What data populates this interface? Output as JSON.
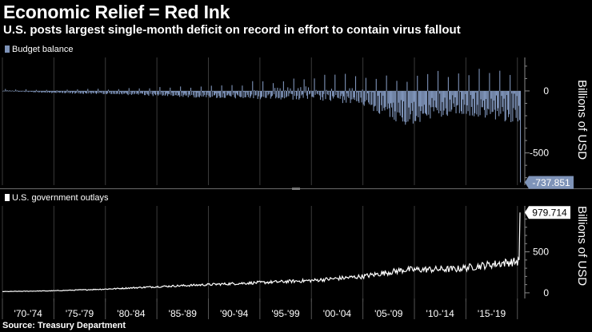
{
  "header": {
    "title": "Economic Relief = Red Ink",
    "subtitle": "U.S. posts largest single-month deficit on record in effort to contain virus fallout"
  },
  "footer": {
    "source": "Source: Treasury Department"
  },
  "colors": {
    "background": "#000000",
    "budget_bar": "#7e93b8",
    "outlays_line": "#ffffff",
    "grid": "#3a3a3a",
    "axis": "#8a8a8a"
  },
  "chart_data": [
    {
      "type": "bar",
      "title": "Budget balance",
      "legend": "Budget balance",
      "ylabel": "Billions of USD",
      "ylim": [
        -760,
        270
      ],
      "yticks": [
        0,
        -500
      ],
      "ytick_labels": [
        "0",
        "-500"
      ],
      "x_start_year": 1970,
      "x_end_year": 2020.33,
      "last_value_label": "-737.851",
      "series": [
        {
          "name": "Budget balance",
          "decade_anchors": [
            {
              "year": 1970,
              "typical": 5,
              "swing": 8
            },
            {
              "year": 1975,
              "typical": -8,
              "swing": 14
            },
            {
              "year": 1980,
              "typical": -10,
              "swing": 22
            },
            {
              "year": 1985,
              "typical": -15,
              "swing": 35
            },
            {
              "year": 1990,
              "typical": -22,
              "swing": 45
            },
            {
              "year": 1995,
              "typical": -12,
              "swing": 70
            },
            {
              "year": 2000,
              "typical": 8,
              "swing": 100
            },
            {
              "year": 2005,
              "typical": -30,
              "swing": 120
            },
            {
              "year": 2009,
              "typical": -130,
              "swing": 190
            },
            {
              "year": 2014,
              "typical": -60,
              "swing": 170
            },
            {
              "year": 2020,
              "typical": -100,
              "swing": 200
            }
          ],
          "final_values": [
            -120,
            -235,
            -737.851
          ]
        }
      ]
    },
    {
      "type": "line",
      "title": "U.S. government outlays",
      "legend": "U.S. government outlays",
      "ylabel": "Billions of USD",
      "ylim": [
        -30,
        1060
      ],
      "yticks": [
        0,
        500
      ],
      "ytick_labels": [
        "0",
        "500"
      ],
      "x_start_year": 1970,
      "x_end_year": 2020.33,
      "last_value_label": "979.714",
      "series": [
        {
          "name": "U.S. government outlays",
          "trend_anchors": [
            {
              "year": 1970,
              "value": 15
            },
            {
              "year": 1975,
              "value": 25
            },
            {
              "year": 1980,
              "value": 45
            },
            {
              "year": 1985,
              "value": 75
            },
            {
              "year": 1990,
              "value": 100
            },
            {
              "year": 1995,
              "value": 125
            },
            {
              "year": 2000,
              "value": 150
            },
            {
              "year": 2005,
              "value": 200
            },
            {
              "year": 2009,
              "value": 280
            },
            {
              "year": 2014,
              "value": 290
            },
            {
              "year": 2019,
              "value": 370
            },
            {
              "year": 2020,
              "value": 380
            }
          ],
          "final_values": [
            400,
            979.714
          ]
        }
      ],
      "categories": [
        "'70-'74",
        "'75-'79",
        "'80-'84",
        "'85-'89",
        "'90-'94",
        "'95-'99",
        "'00-'04",
        "'05-'09",
        "'10-'14",
        "'15-'19"
      ]
    }
  ]
}
